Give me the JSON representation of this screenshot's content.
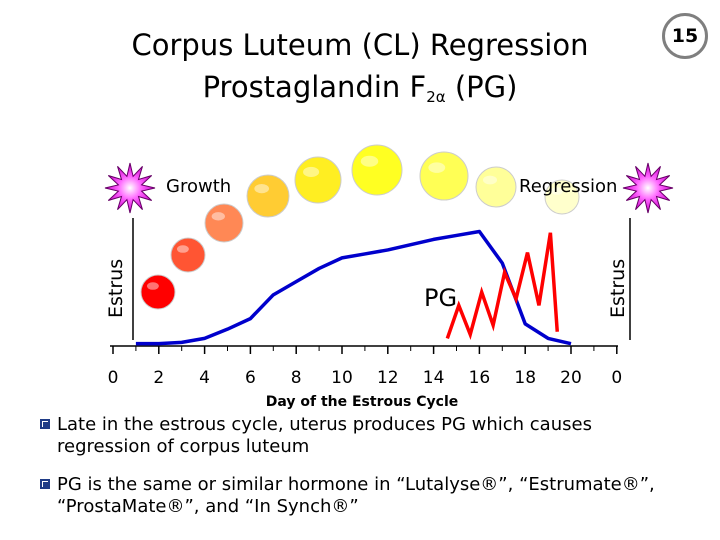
{
  "slide": {
    "number": "15",
    "title_line1": "Corpus Luteum (CL) Regression",
    "title_line2_before": "Prostaglandin F",
    "title_line2_subscript": "2α",
    "title_line2_after": " (PG)"
  },
  "colors": {
    "line": "#0000cc",
    "pg_line": "#ff0000",
    "axis": "#000000",
    "star_fill": "#ff00ff",
    "bullet": "#1f3b86"
  },
  "chart_data": {
    "type": "line",
    "xlabel": "Day of the Estrous Cycle",
    "ylabel": "",
    "tick_labels": [
      "0",
      "2",
      "4",
      "6",
      "8",
      "10",
      "12",
      "14",
      "16",
      "18",
      "20",
      "0"
    ],
    "annotations": {
      "growth": "Growth",
      "regression": "Regression",
      "pg": "PG",
      "estrus_left": "Estrus",
      "estrus_right": "Estrus"
    },
    "series": [
      {
        "name": "",
        "x": [
          1,
          2,
          3,
          4,
          5,
          6,
          7,
          8,
          9,
          10,
          11,
          12,
          13,
          14,
          15,
          16,
          17,
          18,
          19,
          20
        ],
        "values": [
          1,
          1,
          2,
          5,
          12,
          20,
          38,
          48,
          58,
          66,
          69,
          72,
          76,
          80,
          83,
          86,
          62,
          16,
          5,
          1
        ]
      },
      {
        "name": "",
        "x": [
          14.6,
          15.1,
          15.6,
          16.1,
          16.6,
          17.1,
          17.6,
          18.1,
          18.6,
          19.1,
          19.4
        ],
        "values": [
          5,
          30,
          8,
          40,
          15,
          55,
          35,
          70,
          30,
          85,
          10
        ]
      }
    ],
    "corpus_luteum_colors": [
      "#ff0000",
      "#ff5533",
      "#ff8855",
      "#ffcc33",
      "#ffee22",
      "#ffff22",
      "#ffff55",
      "#ffff99",
      "#ffffcc"
    ]
  },
  "bullets": [
    {
      "text": "Late in the estrous cycle, uterus produces PG which causes regression of corpus luteum"
    },
    {
      "text": "PG is the same or similar hormone in “Lutalyse®”, “Estrumate®”, “ProstaMate®”, and “In Synch®”"
    }
  ]
}
